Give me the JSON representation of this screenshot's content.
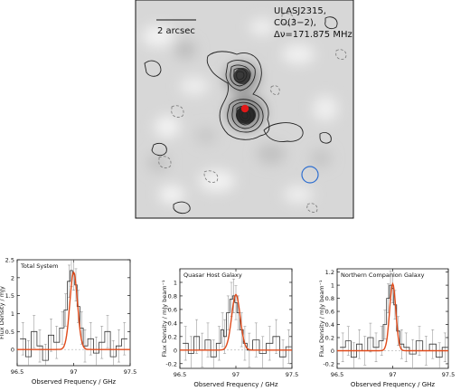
{
  "map": {
    "scale_label": "2 arcsec",
    "header": [
      "ULASJ2315,",
      "CO(3−2),",
      "Δν=171.875 MHz"
    ]
  },
  "chart_data": [
    {
      "type": "line",
      "panel_label": "Total System",
      "xlabel": "Observed Frequency / GHz",
      "ylabel": "Flux Density / mJy",
      "xlim": [
        96.5,
        97.5
      ],
      "ylim": [
        -0.45,
        2.5
      ],
      "xticks": [
        96.5,
        97,
        97.5
      ],
      "yticks": [
        0,
        0.5,
        1,
        1.5,
        2,
        2.5
      ],
      "series": [
        {
          "kind": "data",
          "x": [
            96.55,
            96.6,
            96.65,
            96.7,
            96.75,
            96.8,
            96.85,
            96.9,
            96.93,
            96.96,
            96.98,
            97.0,
            97.02,
            97.04,
            97.07,
            97.1,
            97.15,
            97.2,
            97.25,
            97.3,
            97.35,
            97.4,
            97.45
          ],
          "y": [
            0.3,
            -0.2,
            0.5,
            0.1,
            -0.3,
            0.4,
            0.2,
            0.6,
            1.1,
            1.9,
            2.2,
            2.1,
            1.8,
            1.2,
            0.6,
            0.1,
            0.3,
            -0.1,
            0.2,
            0.5,
            -0.2,
            0.1,
            0.3
          ],
          "err": [
            0.45,
            0.45,
            0.45,
            0.45,
            0.45,
            0.45,
            0.45,
            0.45,
            0.45,
            0.45,
            0.45,
            0.45,
            0.45,
            0.45,
            0.45,
            0.45,
            0.45,
            0.45,
            0.45,
            0.45,
            0.45,
            0.45,
            0.45
          ]
        },
        {
          "kind": "fit",
          "amplitude": 2.15,
          "center": 97.0,
          "sigma": 0.034,
          "offset": 0.0
        }
      ]
    },
    {
      "type": "line",
      "panel_label": "Quasar Host Galaxy",
      "xlabel": "Observed Frequency / GHz",
      "ylabel": "Flux Density / mJy beam⁻¹",
      "xlim": [
        96.5,
        97.5
      ],
      "ylim": [
        -0.27,
        1.2
      ],
      "xticks": [
        96.5,
        97,
        97.5
      ],
      "yticks": [
        -0.2,
        0,
        0.2,
        0.4,
        0.6,
        0.8,
        1
      ],
      "series": [
        {
          "kind": "data",
          "x": [
            96.55,
            96.6,
            96.65,
            96.7,
            96.75,
            96.8,
            96.85,
            96.88,
            96.9,
            96.93,
            96.96,
            96.98,
            97.0,
            97.02,
            97.05,
            97.08,
            97.12,
            97.18,
            97.24,
            97.3,
            97.36,
            97.42,
            97.47
          ],
          "y": [
            0.1,
            -0.05,
            0.2,
            0.0,
            0.15,
            -0.1,
            0.1,
            0.3,
            0.2,
            0.55,
            0.75,
            0.8,
            0.7,
            0.55,
            0.3,
            0.1,
            0.0,
            0.15,
            -0.05,
            0.1,
            0.2,
            -0.1,
            0.05
          ],
          "err": [
            0.25,
            0.25,
            0.25,
            0.25,
            0.25,
            0.25,
            0.25,
            0.25,
            0.25,
            0.25,
            0.25,
            0.25,
            0.25,
            0.25,
            0.25,
            0.25,
            0.25,
            0.25,
            0.25,
            0.25,
            0.25,
            0.25,
            0.25
          ]
        },
        {
          "kind": "fit",
          "amplitude": 0.82,
          "center": 97.0,
          "sigma": 0.038,
          "offset": 0.0
        }
      ]
    },
    {
      "type": "line",
      "panel_label": "Northern Companion Galaxy",
      "xlabel": "Observed Frequency / GHz",
      "ylabel": "Flux Density / mJy beam⁻¹",
      "xlim": [
        96.5,
        97.5
      ],
      "ylim": [
        -0.27,
        1.25
      ],
      "xticks": [
        96.5,
        97,
        97.5
      ],
      "yticks": [
        -0.2,
        0,
        0.2,
        0.4,
        0.6,
        0.8,
        1,
        1.2
      ],
      "series": [
        {
          "kind": "data",
          "x": [
            96.55,
            96.6,
            96.65,
            96.7,
            96.75,
            96.8,
            96.85,
            96.9,
            96.93,
            96.96,
            96.98,
            97.0,
            97.02,
            97.05,
            97.08,
            97.12,
            97.18,
            97.24,
            97.3,
            97.36,
            97.42,
            97.47
          ],
          "y": [
            0.05,
            0.15,
            -0.1,
            0.1,
            0.0,
            0.2,
            0.05,
            0.15,
            0.4,
            0.8,
            1.0,
            0.95,
            0.7,
            0.3,
            0.1,
            0.05,
            -0.05,
            0.15,
            0.0,
            0.1,
            -0.1,
            0.05
          ],
          "err": [
            0.22,
            0.22,
            0.22,
            0.22,
            0.22,
            0.22,
            0.22,
            0.22,
            0.22,
            0.22,
            0.22,
            0.22,
            0.22,
            0.22,
            0.22,
            0.22,
            0.22,
            0.22,
            0.22,
            0.22,
            0.22,
            0.22
          ]
        },
        {
          "kind": "fit",
          "amplitude": 1.02,
          "center": 97.0,
          "sigma": 0.028,
          "offset": 0.0
        }
      ]
    }
  ]
}
